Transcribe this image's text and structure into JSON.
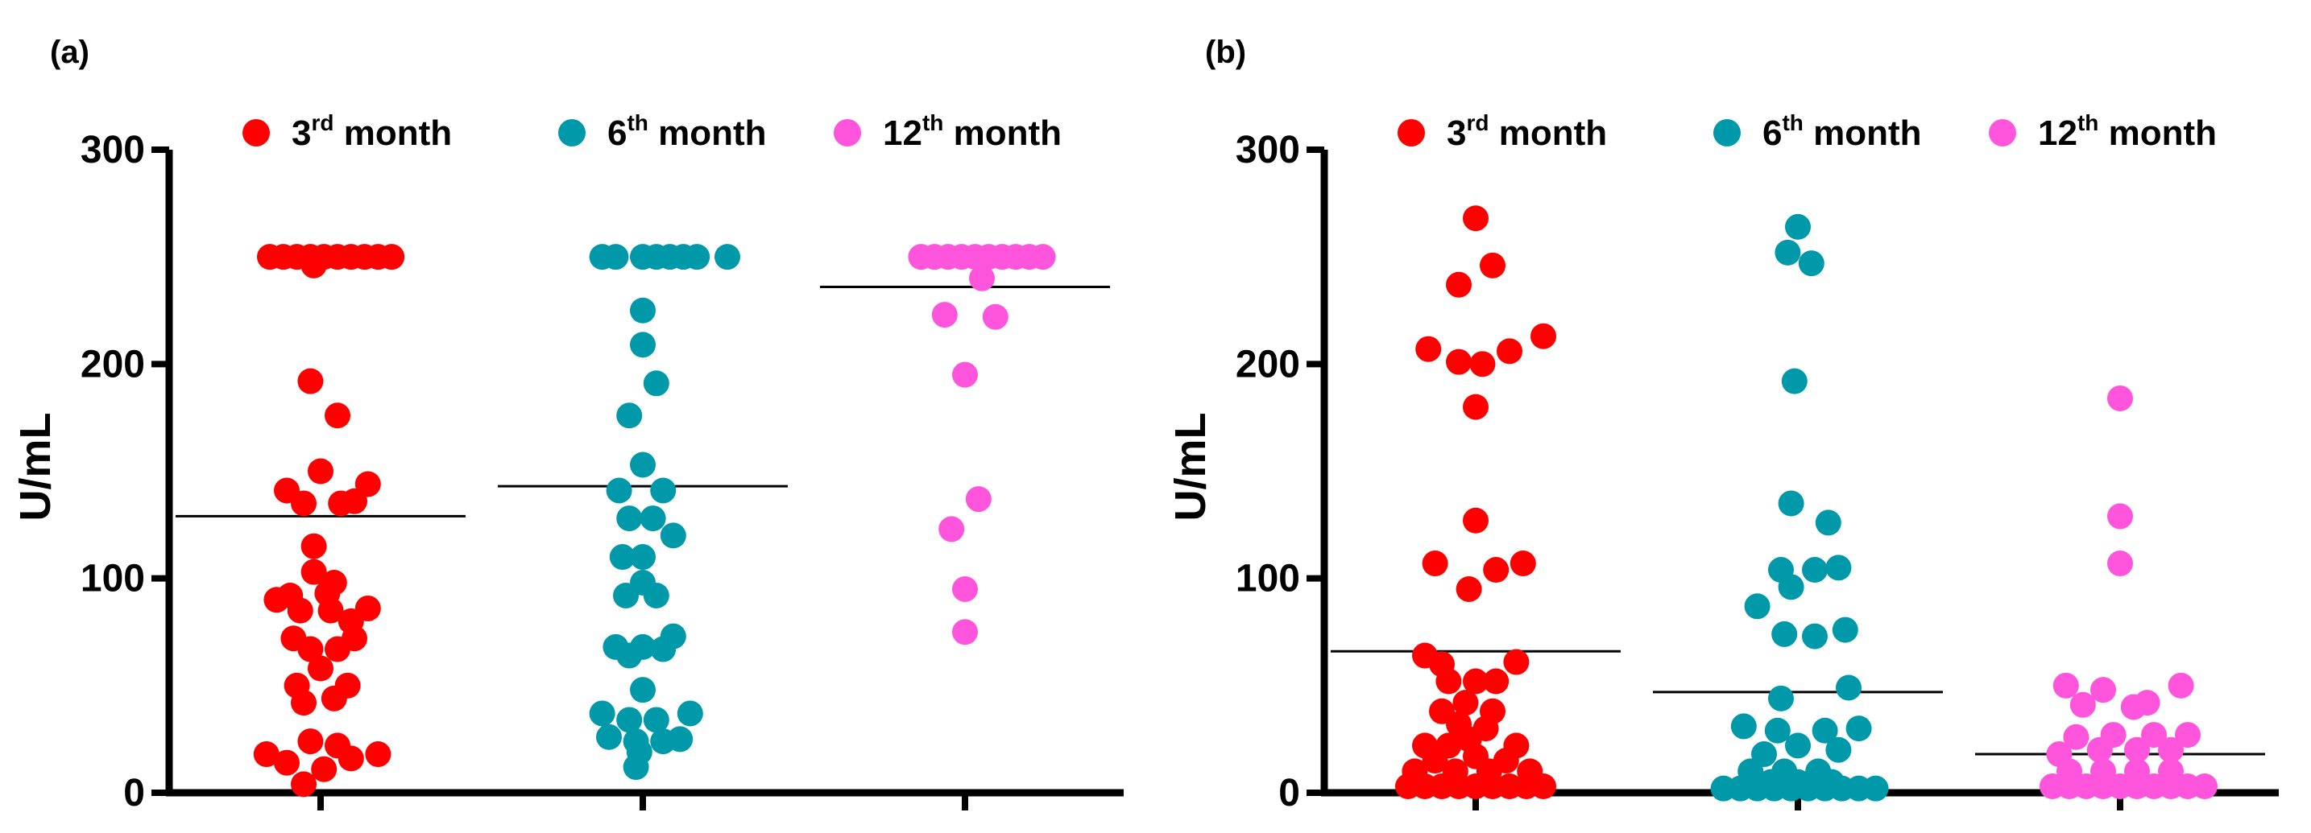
{
  "chart_data": [
    {
      "type": "scatter",
      "panel_label": "(a)",
      "ylabel": "U/mL",
      "ylim": [
        0,
        300
      ],
      "yticks": [
        "0",
        "100",
        "200",
        "300"
      ],
      "legend_position": "top",
      "series": [
        {
          "name": "3rd month",
          "name_base": "3",
          "name_sup": "rd",
          "name_rest": " month",
          "color": "#ff0000",
          "mean": 129,
          "points": [
            [
              -0.15,
              250
            ],
            [
              -0.11,
              250
            ],
            [
              -0.07,
              250
            ],
            [
              -0.03,
              250
            ],
            [
              0.01,
              250
            ],
            [
              0.05,
              250
            ],
            [
              0.09,
              250
            ],
            [
              0.13,
              250
            ],
            [
              0.17,
              250
            ],
            [
              0.21,
              250
            ],
            [
              -0.02,
              246
            ],
            [
              -0.03,
              192
            ],
            [
              0.05,
              176
            ],
            [
              -0.1,
              141
            ],
            [
              0.0,
              150
            ],
            [
              0.14,
              144
            ],
            [
              0.1,
              136
            ],
            [
              -0.05,
              135
            ],
            [
              0.06,
              135
            ],
            [
              -0.02,
              115
            ],
            [
              -0.02,
              103
            ],
            [
              0.04,
              98
            ],
            [
              -0.09,
              92
            ],
            [
              0.02,
              93
            ],
            [
              -0.06,
              85
            ],
            [
              0.03,
              85
            ],
            [
              0.14,
              86
            ],
            [
              -0.13,
              90
            ],
            [
              0.09,
              80
            ],
            [
              -0.08,
              72
            ],
            [
              0.1,
              72
            ],
            [
              -0.03,
              67
            ],
            [
              0.05,
              67
            ],
            [
              0.0,
              58
            ],
            [
              -0.07,
              50
            ],
            [
              0.08,
              50
            ],
            [
              -0.05,
              42
            ],
            [
              0.04,
              44
            ],
            [
              -0.03,
              24
            ],
            [
              0.05,
              22
            ],
            [
              -0.16,
              18
            ],
            [
              0.17,
              18
            ],
            [
              -0.1,
              14
            ],
            [
              0.09,
              16
            ],
            [
              0.01,
              11
            ],
            [
              -0.05,
              4
            ]
          ]
        },
        {
          "name": "6th month",
          "name_base": "6",
          "name_sup": "th",
          "name_rest": " month",
          "color": "#0099aa",
          "mean": 143,
          "points": [
            [
              -0.12,
              250
            ],
            [
              -0.08,
              250
            ],
            [
              0.0,
              250
            ],
            [
              0.04,
              250
            ],
            [
              0.08,
              250
            ],
            [
              0.12,
              250
            ],
            [
              0.16,
              250
            ],
            [
              0.25,
              250
            ],
            [
              0.0,
              225
            ],
            [
              0.0,
              209
            ],
            [
              0.04,
              191
            ],
            [
              -0.04,
              176
            ],
            [
              0.0,
              153
            ],
            [
              -0.07,
              141
            ],
            [
              0.06,
              141
            ],
            [
              0.09,
              120
            ],
            [
              -0.04,
              128
            ],
            [
              0.03,
              128
            ],
            [
              -0.06,
              110
            ],
            [
              0.0,
              110
            ],
            [
              0.0,
              98
            ],
            [
              -0.05,
              92
            ],
            [
              0.04,
              92
            ],
            [
              -0.08,
              68
            ],
            [
              0.0,
              68
            ],
            [
              -0.04,
              64
            ],
            [
              0.06,
              67
            ],
            [
              0.09,
              73
            ],
            [
              0.0,
              48
            ],
            [
              -0.12,
              37
            ],
            [
              0.14,
              37
            ],
            [
              -0.04,
              34
            ],
            [
              0.04,
              34
            ],
            [
              -0.1,
              26
            ],
            [
              -0.02,
              24
            ],
            [
              0.06,
              24
            ],
            [
              0.11,
              25
            ],
            [
              -0.01,
              19
            ],
            [
              -0.02,
              12
            ]
          ]
        },
        {
          "name": "12th month",
          "name_base": "12",
          "name_sup": "th",
          "name_rest": " month",
          "color": "#ff55dd",
          "mean": 236,
          "points": [
            [
              -0.13,
              250
            ],
            [
              -0.09,
              250
            ],
            [
              -0.05,
              250
            ],
            [
              -0.01,
              250
            ],
            [
              0.03,
              250
            ],
            [
              0.07,
              250
            ],
            [
              0.11,
              250
            ],
            [
              0.15,
              250
            ],
            [
              0.19,
              250
            ],
            [
              0.23,
              250
            ],
            [
              0.05,
              240
            ],
            [
              -0.06,
              223
            ],
            [
              0.09,
              222
            ],
            [
              0.0,
              195
            ],
            [
              0.04,
              137
            ],
            [
              -0.04,
              123
            ],
            [
              0.0,
              95
            ],
            [
              0.0,
              75
            ]
          ]
        }
      ]
    },
    {
      "type": "scatter",
      "panel_label": "(b)",
      "ylabel": "U/mL",
      "ylim": [
        0,
        300
      ],
      "yticks": [
        "0",
        "100",
        "200",
        "300"
      ],
      "legend_position": "top",
      "series": [
        {
          "name": "3rd month",
          "name_base": "3",
          "name_sup": "rd",
          "name_rest": " month",
          "color": "#ff0000",
          "mean": 66,
          "points": [
            [
              0.0,
              268
            ],
            [
              -0.05,
              237
            ],
            [
              0.05,
              246
            ],
            [
              -0.14,
              207
            ],
            [
              -0.05,
              201
            ],
            [
              0.02,
              200
            ],
            [
              0.1,
              206
            ],
            [
              0.2,
              213
            ],
            [
              0.0,
              180
            ],
            [
              0.0,
              127
            ],
            [
              -0.12,
              107
            ],
            [
              0.06,
              104
            ],
            [
              0.14,
              107
            ],
            [
              -0.02,
              95
            ],
            [
              -0.15,
              64
            ],
            [
              -0.1,
              60
            ],
            [
              0.12,
              61
            ],
            [
              -0.08,
              52
            ],
            [
              0.0,
              52
            ],
            [
              0.06,
              52
            ],
            [
              -0.03,
              42
            ],
            [
              -0.1,
              38
            ],
            [
              0.05,
              38
            ],
            [
              -0.05,
              32
            ],
            [
              0.03,
              30
            ],
            [
              -0.02,
              25
            ],
            [
              -0.15,
              22
            ],
            [
              -0.08,
              22
            ],
            [
              0.12,
              22
            ],
            [
              -0.12,
              15
            ],
            [
              0.0,
              17
            ],
            [
              0.09,
              15
            ],
            [
              -0.18,
              10
            ],
            [
              -0.06,
              10
            ],
            [
              0.04,
              10
            ],
            [
              0.16,
              10
            ],
            [
              -0.2,
              3
            ],
            [
              -0.15,
              3
            ],
            [
              -0.1,
              3
            ],
            [
              -0.05,
              3
            ],
            [
              0.0,
              3
            ],
            [
              0.05,
              3
            ],
            [
              0.1,
              3
            ],
            [
              0.15,
              3
            ],
            [
              0.2,
              3
            ]
          ]
        },
        {
          "name": "6th month",
          "name_base": "6",
          "name_sup": "th",
          "name_rest": " month",
          "color": "#0099aa",
          "mean": 47,
          "points": [
            [
              0.0,
              264
            ],
            [
              -0.03,
              252
            ],
            [
              0.04,
              247
            ],
            [
              -0.01,
              192
            ],
            [
              -0.02,
              135
            ],
            [
              0.09,
              126
            ],
            [
              -0.05,
              104
            ],
            [
              0.05,
              104
            ],
            [
              0.12,
              105
            ],
            [
              -0.02,
              96
            ],
            [
              -0.12,
              87
            ],
            [
              -0.04,
              74
            ],
            [
              0.05,
              73
            ],
            [
              0.14,
              76
            ],
            [
              0.15,
              49
            ],
            [
              -0.05,
              44
            ],
            [
              -0.16,
              31
            ],
            [
              0.18,
              30
            ],
            [
              -0.06,
              29
            ],
            [
              0.08,
              29
            ],
            [
              0.0,
              22
            ],
            [
              -0.1,
              18
            ],
            [
              0.12,
              20
            ],
            [
              -0.14,
              10
            ],
            [
              -0.04,
              10
            ],
            [
              0.06,
              10
            ],
            [
              -0.08,
              5
            ],
            [
              0.0,
              5
            ],
            [
              0.1,
              5
            ],
            [
              -0.22,
              2
            ],
            [
              -0.17,
              2
            ],
            [
              -0.12,
              2
            ],
            [
              -0.07,
              2
            ],
            [
              -0.02,
              2
            ],
            [
              0.03,
              2
            ],
            [
              0.08,
              2
            ],
            [
              0.13,
              2
            ],
            [
              0.18,
              2
            ],
            [
              0.23,
              2
            ]
          ]
        },
        {
          "name": "12th month",
          "name_base": "12",
          "name_sup": "th",
          "name_rest": " month",
          "color": "#ff55dd",
          "mean": 18,
          "points": [
            [
              0.0,
              184
            ],
            [
              0.0,
              129
            ],
            [
              0.0,
              107
            ],
            [
              -0.16,
              50
            ],
            [
              -0.05,
              48
            ],
            [
              0.08,
              42
            ],
            [
              0.04,
              40
            ],
            [
              -0.11,
              41
            ],
            [
              0.18,
              50
            ],
            [
              -0.02,
              27
            ],
            [
              -0.13,
              26
            ],
            [
              0.1,
              27
            ],
            [
              0.2,
              27
            ],
            [
              -0.18,
              18
            ],
            [
              -0.06,
              20
            ],
            [
              0.05,
              20
            ],
            [
              0.15,
              20
            ],
            [
              -0.15,
              10
            ],
            [
              -0.05,
              10
            ],
            [
              0.05,
              10
            ],
            [
              0.15,
              10
            ],
            [
              -0.2,
              3
            ],
            [
              -0.15,
              3
            ],
            [
              -0.1,
              3
            ],
            [
              -0.05,
              3
            ],
            [
              0.0,
              3
            ],
            [
              0.05,
              3
            ],
            [
              0.1,
              3
            ],
            [
              0.15,
              3
            ],
            [
              0.2,
              3
            ],
            [
              0.25,
              3
            ]
          ]
        }
      ]
    }
  ]
}
